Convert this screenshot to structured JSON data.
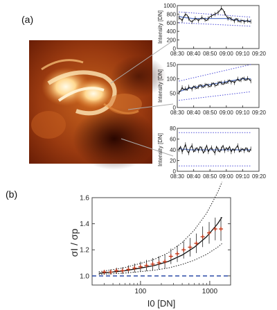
{
  "panel_labels": {
    "a": "(a)",
    "b": "(b)"
  },
  "image": {
    "description_name": "solar-active-region-image"
  },
  "chart_data": [
    {
      "type": "line",
      "ylabel": "Intensity [DN]",
      "xticks": [
        "08:30",
        "08:40",
        "08:50",
        "09:00",
        "09:10",
        "09:20"
      ],
      "ylim": [
        0,
        1000
      ],
      "yticks": [
        "0",
        "200",
        "400",
        "600",
        "800",
        "1000"
      ],
      "x": [
        "08:31",
        "08:32",
        "08:33",
        "08:34",
        "08:35",
        "08:36",
        "08:37",
        "08:38",
        "08:39",
        "08:40",
        "08:41",
        "08:42",
        "08:43",
        "08:44",
        "08:45",
        "08:46",
        "08:47",
        "08:48",
        "08:49",
        "08:50",
        "08:51",
        "08:52",
        "08:53",
        "08:54",
        "08:55",
        "08:56",
        "08:57",
        "08:58",
        "08:59",
        "09:00",
        "09:01",
        "09:02",
        "09:03",
        "09:04",
        "09:05",
        "09:06",
        "09:07",
        "09:08",
        "09:09",
        "09:10",
        "09:11",
        "09:12",
        "09:13",
        "09:14",
        "09:15"
      ],
      "series": [
        {
          "values": [
            720,
            690,
            650,
            740,
            800,
            780,
            700,
            640,
            620,
            660,
            700,
            680,
            650,
            690,
            720,
            700,
            670,
            650,
            700,
            740,
            760,
            780,
            800,
            820,
            840,
            880,
            940,
            900,
            820,
            760,
            700,
            720,
            690,
            660,
            640,
            700,
            660,
            620,
            640,
            660,
            620,
            640,
            650,
            620,
            630
          ]
        },
        {
          "values": [
            750,
            740,
            730,
            725,
            720,
            715,
            710,
            705,
            700,
            700,
            700,
            700,
            700,
            700,
            700,
            700,
            700,
            700,
            700,
            700,
            700,
            700,
            700,
            700,
            700,
            700,
            700,
            700,
            700,
            700,
            690,
            685,
            680,
            675,
            670,
            665,
            660,
            655,
            650,
            650,
            645,
            640,
            640,
            640,
            640
          ]
        }
      ],
      "bounds": {
        "upper_start": 850,
        "upper_end": 730,
        "lower_start": 600,
        "lower_end": 520
      }
    },
    {
      "type": "line",
      "ylabel": "Intensity [DN]",
      "xticks": [
        "08:30",
        "08:40",
        "08:50",
        "09:00",
        "09:10",
        "09:20"
      ],
      "ylim": [
        0,
        150
      ],
      "yticks": [
        "0",
        "50",
        "100",
        "150"
      ],
      "x": [
        "08:31",
        "08:32",
        "08:33",
        "08:34",
        "08:35",
        "08:36",
        "08:37",
        "08:38",
        "08:39",
        "08:40",
        "08:41",
        "08:42",
        "08:43",
        "08:44",
        "08:45",
        "08:46",
        "08:47",
        "08:48",
        "08:49",
        "08:50",
        "08:51",
        "08:52",
        "08:53",
        "08:54",
        "08:55",
        "08:56",
        "08:57",
        "08:58",
        "08:59",
        "09:00",
        "09:01",
        "09:02",
        "09:03",
        "09:04",
        "09:05",
        "09:06",
        "09:07",
        "09:08",
        "09:09",
        "09:10",
        "09:11",
        "09:12",
        "09:13",
        "09:14",
        "09:15"
      ],
      "series": [
        {
          "values": [
            52,
            58,
            70,
            62,
            66,
            60,
            72,
            68,
            64,
            75,
            70,
            66,
            72,
            80,
            74,
            70,
            78,
            82,
            76,
            72,
            80,
            86,
            78,
            76,
            84,
            90,
            86,
            80,
            88,
            84,
            90,
            96,
            88,
            92,
            86,
            94,
            100,
            92,
            96,
            104,
            100,
            94,
            102,
            98,
            92
          ]
        },
        {
          "values": [
            55,
            57,
            59,
            61,
            63,
            65,
            67,
            68,
            69,
            70,
            71,
            72,
            73,
            74,
            75,
            76,
            77,
            78,
            79,
            80,
            81,
            82,
            83,
            84,
            85,
            86,
            87,
            88,
            89,
            90,
            91,
            92,
            93,
            94,
            95,
            96,
            97,
            98,
            99,
            100,
            100,
            100,
            100,
            100,
            100
          ]
        }
      ],
      "bounds": {
        "upper_start": 92,
        "upper_end": 150,
        "lower_start": 25,
        "lower_end": 55
      }
    },
    {
      "type": "line",
      "ylabel": "Intensity [DN]",
      "xticks": [
        "08:30",
        "08:40",
        "08:50",
        "09:00",
        "09:10",
        "09:20"
      ],
      "ylim": [
        0,
        80
      ],
      "yticks": [
        "0",
        "20",
        "40",
        "60",
        "80"
      ],
      "x": [
        "08:31",
        "08:32",
        "08:33",
        "08:34",
        "08:35",
        "08:36",
        "08:37",
        "08:38",
        "08:39",
        "08:40",
        "08:41",
        "08:42",
        "08:43",
        "08:44",
        "08:45",
        "08:46",
        "08:47",
        "08:48",
        "08:49",
        "08:50",
        "08:51",
        "08:52",
        "08:53",
        "08:54",
        "08:55",
        "08:56",
        "08:57",
        "08:58",
        "08:59",
        "09:00",
        "09:01",
        "09:02",
        "09:03",
        "09:04",
        "09:05",
        "09:06",
        "09:07",
        "09:08",
        "09:09",
        "09:10",
        "09:11",
        "09:12",
        "09:13",
        "09:14",
        "09:15"
      ],
      "series": [
        {
          "values": [
            40,
            46,
            36,
            42,
            50,
            38,
            34,
            44,
            48,
            36,
            40,
            44,
            38,
            46,
            42,
            34,
            40,
            48,
            36,
            42,
            44,
            38,
            34,
            46,
            40,
            36,
            42,
            48,
            38,
            44,
            40,
            46,
            36,
            42,
            38,
            44,
            48,
            36,
            40,
            42,
            38,
            44,
            40,
            36,
            42
          ]
        },
        {
          "values": [
            42,
            42,
            41,
            41,
            41,
            41,
            40,
            40,
            40,
            40,
            40,
            40,
            40,
            40,
            40,
            40,
            40,
            40,
            40,
            40,
            40,
            40,
            40,
            40,
            40,
            40,
            40,
            40,
            40,
            40,
            40,
            40,
            40,
            40,
            40,
            40,
            40,
            40,
            40,
            40,
            40,
            40,
            40,
            40,
            40
          ]
        }
      ],
      "bounds": {
        "upper_start": 72,
        "upper_end": 72,
        "lower_start": 10,
        "lower_end": 10
      }
    },
    {
      "type": "scatter",
      "xlabel": "I0 [DN]",
      "ylabel": "σI / σp",
      "xscale": "log",
      "xlim": [
        20,
        2000
      ],
      "ylim": [
        0.93,
        1.6
      ],
      "xticks": [
        "100",
        "1000"
      ],
      "yticks": [
        "1.0",
        "1.2",
        "1.4",
        "1.6"
      ],
      "points": {
        "x": [
          30,
          37,
          45,
          55,
          67,
          82,
          100,
          122,
          150,
          185,
          225,
          275,
          340,
          420,
          520,
          640,
          790,
          980,
          1200,
          1450
        ],
        "y": [
          1.03,
          1.03,
          1.04,
          1.04,
          1.05,
          1.06,
          1.07,
          1.08,
          1.09,
          1.1,
          1.11,
          1.15,
          1.17,
          1.2,
          1.22,
          1.25,
          1.3,
          1.33,
          1.36,
          1.36
        ]
      },
      "model": {
        "x": [
          25,
          40,
          60,
          100,
          160,
          250,
          400,
          600,
          900,
          1300,
          1500
        ],
        "y": [
          1.02,
          1.03,
          1.04,
          1.06,
          1.08,
          1.11,
          1.16,
          1.22,
          1.3,
          1.4,
          1.45
        ]
      },
      "reference_line": 1.0
    }
  ]
}
